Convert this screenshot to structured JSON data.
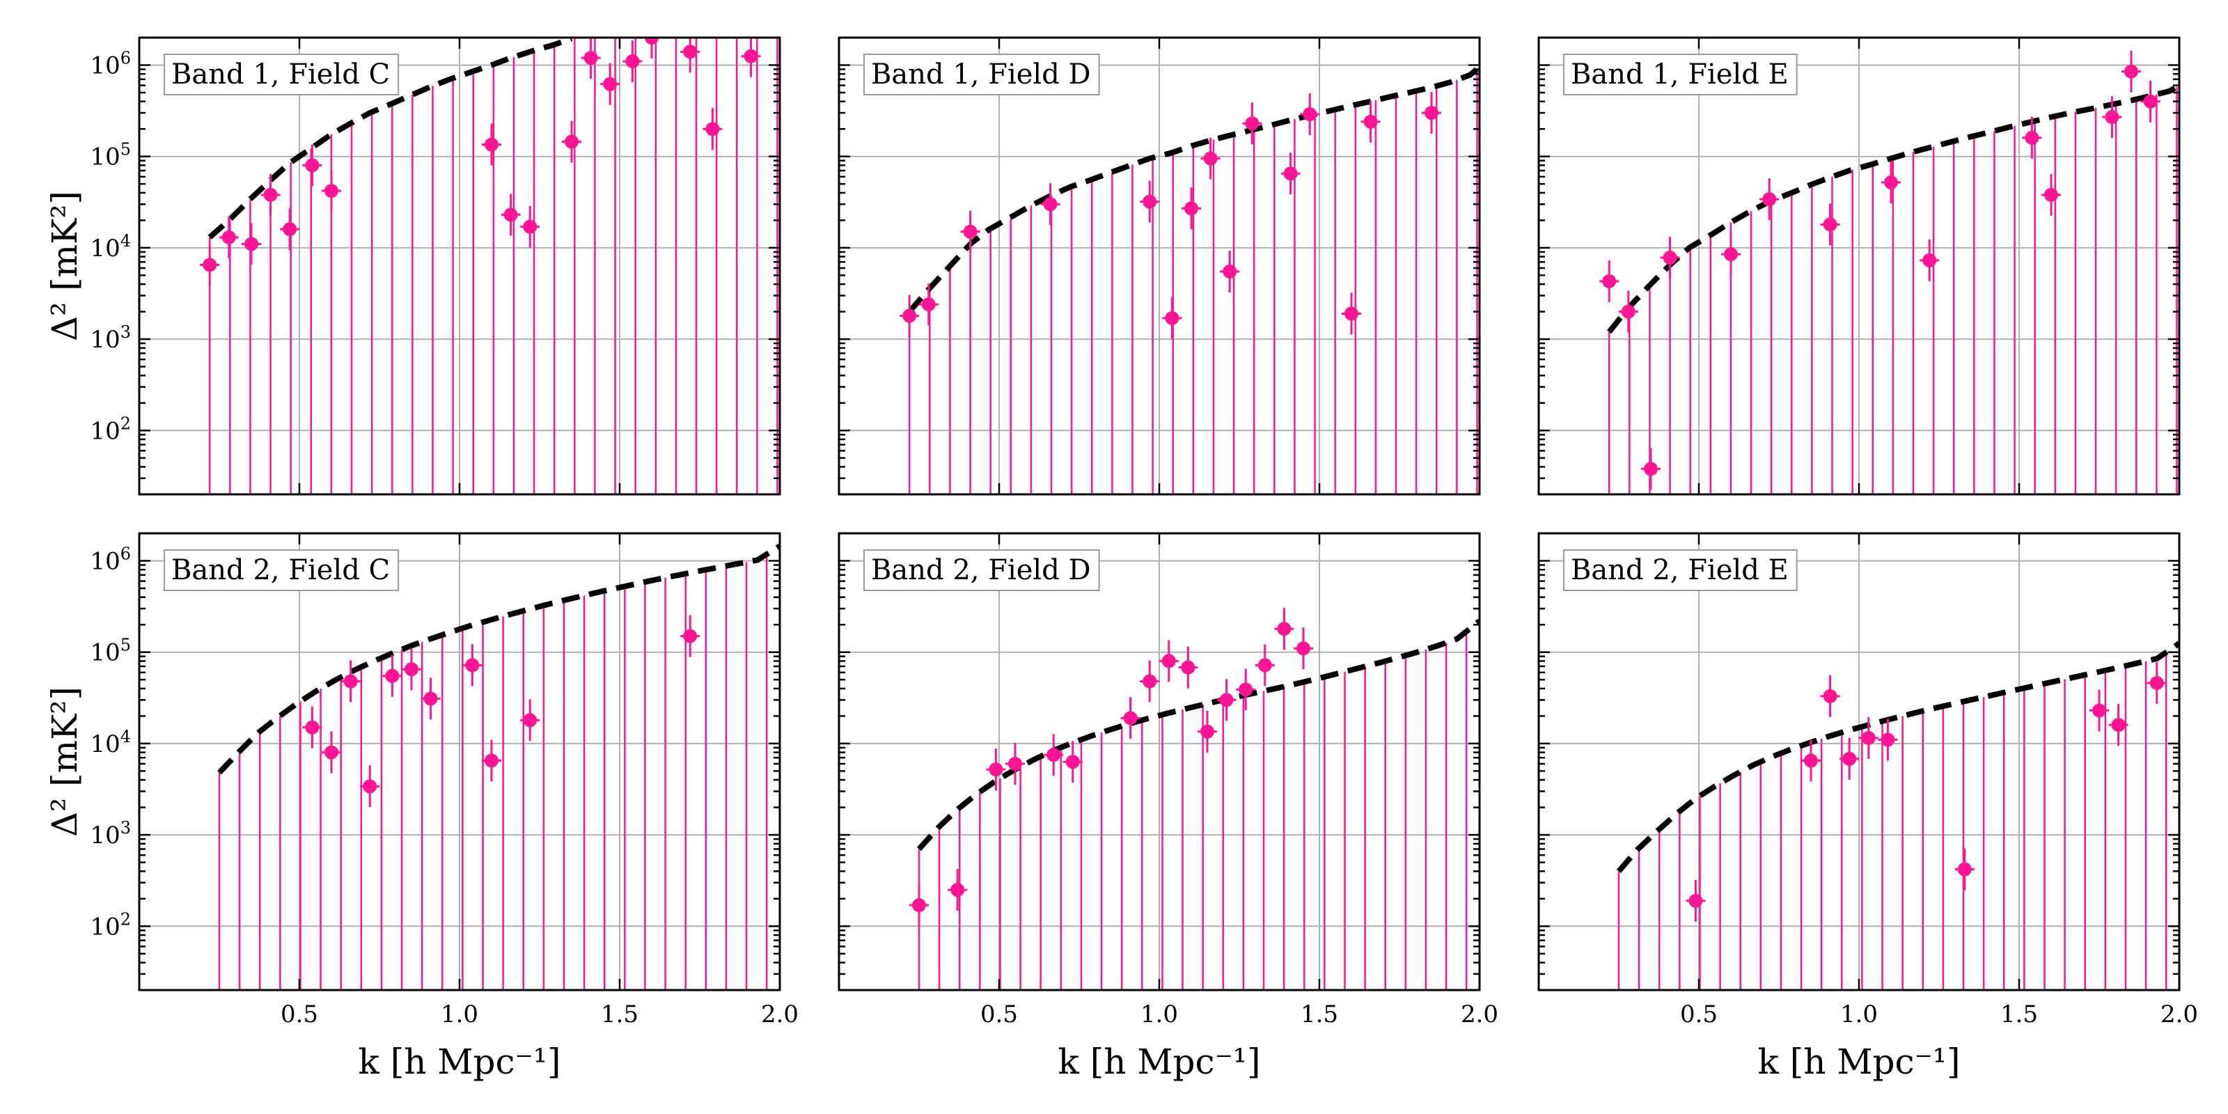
{
  "figure": {
    "xlabel": "k [h Mpc⁻¹]",
    "ylabel": "Δ² [mK²]",
    "colors": {
      "data": "#ff1493",
      "model": "#000000",
      "grid": "#b0b0b0"
    }
  },
  "chart_data": [
    {
      "type": "scatter",
      "panel": "Band 1, Field C",
      "xlim": [
        0.0,
        2.0
      ],
      "ylim": [
        20,
        2000000
      ],
      "yscale": "log",
      "grid": true,
      "legend_position": "top-left",
      "xticks": [
        0.5,
        1.0,
        1.5,
        2.0
      ],
      "yticks": [
        100,
        1000,
        10000,
        100000,
        1000000
      ],
      "series": [
        {
          "kind": "points",
          "x": [
            0.22,
            0.28,
            0.35,
            0.41,
            0.47,
            0.54,
            0.6,
            1.1,
            1.16,
            1.22,
            1.35,
            1.41,
            1.47,
            1.54,
            1.6,
            1.72,
            1.79,
            1.91
          ],
          "y": [
            6500,
            13000,
            11000,
            38000,
            16000,
            80000,
            42000,
            135000,
            23000,
            17000,
            145000,
            1200000,
            620000,
            1100000,
            2000000,
            1400000,
            200000,
            1250000
          ]
        },
        {
          "kind": "model",
          "x": [
            0.22,
            0.28,
            0.35,
            0.41,
            0.47,
            0.54,
            0.6,
            0.66,
            0.72,
            0.79,
            0.85,
            0.91,
            0.97,
            1.04,
            1.1,
            1.16,
            1.22,
            1.29,
            1.35
          ],
          "y": [
            13000,
            20000,
            35000,
            55000,
            85000,
            125000,
            175000,
            230000,
            300000,
            380000,
            470000,
            580000,
            700000,
            850000,
            1000000,
            1200000,
            1400000,
            1650000,
            1950000
          ]
        }
      ]
    },
    {
      "type": "scatter",
      "panel": "Band 1, Field D",
      "xlim": [
        0.0,
        2.0
      ],
      "ylim": [
        20,
        2000000
      ],
      "yscale": "log",
      "grid": true,
      "legend_position": "top-left",
      "xticks": [
        0.5,
        1.0,
        1.5,
        2.0
      ],
      "yticks": [
        100,
        1000,
        10000,
        100000,
        1000000
      ],
      "series": [
        {
          "kind": "points",
          "x": [
            0.22,
            0.28,
            0.41,
            0.66,
            0.97,
            1.04,
            1.1,
            1.16,
            1.22,
            1.29,
            1.41,
            1.47,
            1.6,
            1.66,
            1.85
          ],
          "y": [
            1800,
            2400,
            15000,
            30000,
            32000,
            1700,
            27000,
            95000,
            5500,
            230000,
            65000,
            290000,
            1900,
            240000,
            300000
          ]
        },
        {
          "kind": "model",
          "x": [
            0.22,
            0.28,
            0.35,
            0.41,
            0.47,
            0.54,
            0.6,
            0.66,
            0.72,
            0.79,
            0.85,
            0.91,
            0.97,
            1.04,
            1.1,
            1.16,
            1.22,
            1.29,
            1.35,
            1.41,
            1.47,
            1.54,
            1.6,
            1.66,
            1.72,
            1.79,
            1.85,
            1.91,
            1.97,
            2.0
          ],
          "y": [
            2000,
            3500,
            6500,
            11000,
            16000,
            22000,
            29000,
            37000,
            46000,
            56000,
            67000,
            80000,
            95000,
            110000,
            130000,
            150000,
            170000,
            195000,
            220000,
            250000,
            280000,
            320000,
            360000,
            400000,
            450000,
            510000,
            570000,
            650000,
            780000,
            950000
          ]
        }
      ]
    },
    {
      "type": "scatter",
      "panel": "Band 1, Field E",
      "xlim": [
        0.0,
        2.0
      ],
      "ylim": [
        20,
        2000000
      ],
      "yscale": "log",
      "grid": true,
      "legend_position": "top-left",
      "xticks": [
        0.5,
        1.0,
        1.5,
        2.0
      ],
      "yticks": [
        100,
        1000,
        10000,
        100000,
        1000000
      ],
      "series": [
        {
          "kind": "points",
          "x": [
            0.22,
            0.28,
            0.35,
            0.41,
            0.6,
            0.72,
            0.91,
            1.1,
            1.22,
            1.54,
            1.6,
            1.79,
            1.85,
            1.91
          ],
          "y": [
            4300,
            2000,
            38,
            7800,
            8500,
            34000,
            18000,
            52000,
            7300,
            160000,
            38000,
            270000,
            850000,
            400000
          ]
        },
        {
          "kind": "model",
          "x": [
            0.22,
            0.28,
            0.35,
            0.41,
            0.47,
            0.54,
            0.6,
            0.66,
            0.72,
            0.79,
            0.85,
            0.91,
            0.97,
            1.04,
            1.1,
            1.16,
            1.22,
            1.29,
            1.35,
            1.41,
            1.47,
            1.54,
            1.6,
            1.66,
            1.72,
            1.79,
            1.85,
            1.91,
            1.97,
            2.0
          ],
          "y": [
            1200,
            2200,
            4000,
            6500,
            10000,
            14000,
            19000,
            25000,
            32000,
            40000,
            49000,
            59000,
            70000,
            82000,
            95000,
            110000,
            125000,
            145000,
            165000,
            185000,
            210000,
            240000,
            270000,
            300000,
            330000,
            370000,
            410000,
            460000,
            520000,
            600000
          ]
        }
      ]
    },
    {
      "type": "scatter",
      "panel": "Band 2, Field C",
      "xlim": [
        0.0,
        2.0
      ],
      "ylim": [
        20,
        2000000
      ],
      "yscale": "log",
      "grid": true,
      "legend_position": "top-left",
      "xticks": [
        0.5,
        1.0,
        1.5,
        2.0
      ],
      "yticks": [
        100,
        1000,
        10000,
        100000,
        1000000
      ],
      "series": [
        {
          "kind": "points",
          "x": [
            0.54,
            0.6,
            0.66,
            0.72,
            0.79,
            0.85,
            0.91,
            1.04,
            1.1,
            1.22,
            1.72
          ],
          "y": [
            15000,
            8000,
            48000,
            3400,
            55000,
            65000,
            31000,
            72000,
            6500,
            18000,
            150000
          ]
        },
        {
          "kind": "model",
          "x": [
            0.25,
            0.31,
            0.37,
            0.43,
            0.49,
            0.55,
            0.61,
            0.67,
            0.73,
            0.79,
            0.85,
            0.91,
            0.97,
            1.03,
            1.09,
            1.15,
            1.21,
            1.27,
            1.33,
            1.39,
            1.45,
            1.51,
            1.57,
            1.63,
            1.69,
            1.75,
            1.81,
            1.87,
            1.93,
            2.0
          ],
          "y": [
            4800,
            8000,
            13000,
            19000,
            27000,
            37000,
            49000,
            63000,
            79000,
            97000,
            118000,
            140000,
            165000,
            193000,
            222000,
            255000,
            290000,
            330000,
            372000,
            418000,
            468000,
            520000,
            578000,
            640000,
            705000,
            775000,
            850000,
            930000,
            1020000,
            1450000
          ]
        }
      ]
    },
    {
      "type": "scatter",
      "panel": "Band 2, Field D",
      "xlim": [
        0.0,
        2.0
      ],
      "ylim": [
        20,
        2000000
      ],
      "yscale": "log",
      "grid": true,
      "legend_position": "top-left",
      "xticks": [
        0.5,
        1.0,
        1.5,
        2.0
      ],
      "yticks": [
        100,
        1000,
        10000,
        100000,
        1000000
      ],
      "series": [
        {
          "kind": "points",
          "x": [
            0.25,
            0.37,
            0.49,
            0.55,
            0.67,
            0.73,
            0.91,
            0.97,
            1.03,
            1.09,
            1.15,
            1.21,
            1.27,
            1.33,
            1.39,
            1.45
          ],
          "y": [
            170,
            250,
            5200,
            6000,
            7500,
            6300,
            19000,
            48000,
            80000,
            68000,
            13500,
            30000,
            39000,
            72000,
            180000,
            110000
          ]
        },
        {
          "kind": "model",
          "x": [
            0.25,
            0.31,
            0.37,
            0.43,
            0.49,
            0.55,
            0.61,
            0.67,
            0.73,
            0.79,
            0.85,
            0.91,
            0.97,
            1.03,
            1.09,
            1.15,
            1.21,
            1.27,
            1.33,
            1.39,
            1.45,
            1.51,
            1.57,
            1.63,
            1.69,
            1.75,
            1.81,
            1.87,
            1.93,
            2.0
          ],
          "y": [
            700,
            1200,
            1900,
            2800,
            3900,
            5200,
            6700,
            8400,
            10200,
            12200,
            14300,
            16600,
            19000,
            21600,
            24400,
            27400,
            30600,
            34000,
            37800,
            42000,
            47000,
            53000,
            60000,
            68000,
            77000,
            88000,
            101000,
            118000,
            140000,
            220000
          ]
        }
      ]
    },
    {
      "type": "scatter",
      "panel": "Band 2, Field E",
      "xlim": [
        0.0,
        2.0
      ],
      "ylim": [
        20,
        2000000
      ],
      "yscale": "log",
      "grid": true,
      "legend_position": "top-left",
      "xticks": [
        0.5,
        1.0,
        1.5,
        2.0
      ],
      "yticks": [
        100,
        1000,
        10000,
        100000,
        1000000
      ],
      "series": [
        {
          "kind": "points",
          "x": [
            0.49,
            0.85,
            0.91,
            0.97,
            1.03,
            1.09,
            1.33,
            1.75,
            1.81,
            1.93
          ],
          "y": [
            190,
            6500,
            33000,
            6800,
            11500,
            11000,
            420,
            23000,
            16000,
            46000
          ]
        },
        {
          "kind": "model",
          "x": [
            0.25,
            0.31,
            0.37,
            0.43,
            0.49,
            0.55,
            0.61,
            0.67,
            0.73,
            0.79,
            0.85,
            0.91,
            0.97,
            1.03,
            1.09,
            1.15,
            1.21,
            1.27,
            1.33,
            1.39,
            1.45,
            1.51,
            1.57,
            1.63,
            1.69,
            1.75,
            1.81,
            1.87,
            1.93,
            2.0
          ],
          "y": [
            400,
            700,
            1100,
            1700,
            2500,
            3400,
            4500,
            5800,
            7200,
            8700,
            10300,
            12100,
            14000,
            16000,
            18200,
            20600,
            23200,
            26000,
            29000,
            32300,
            36000,
            40000,
            44500,
            49500,
            55000,
            61000,
            68000,
            76000,
            85000,
            125000
          ]
        }
      ]
    }
  ]
}
